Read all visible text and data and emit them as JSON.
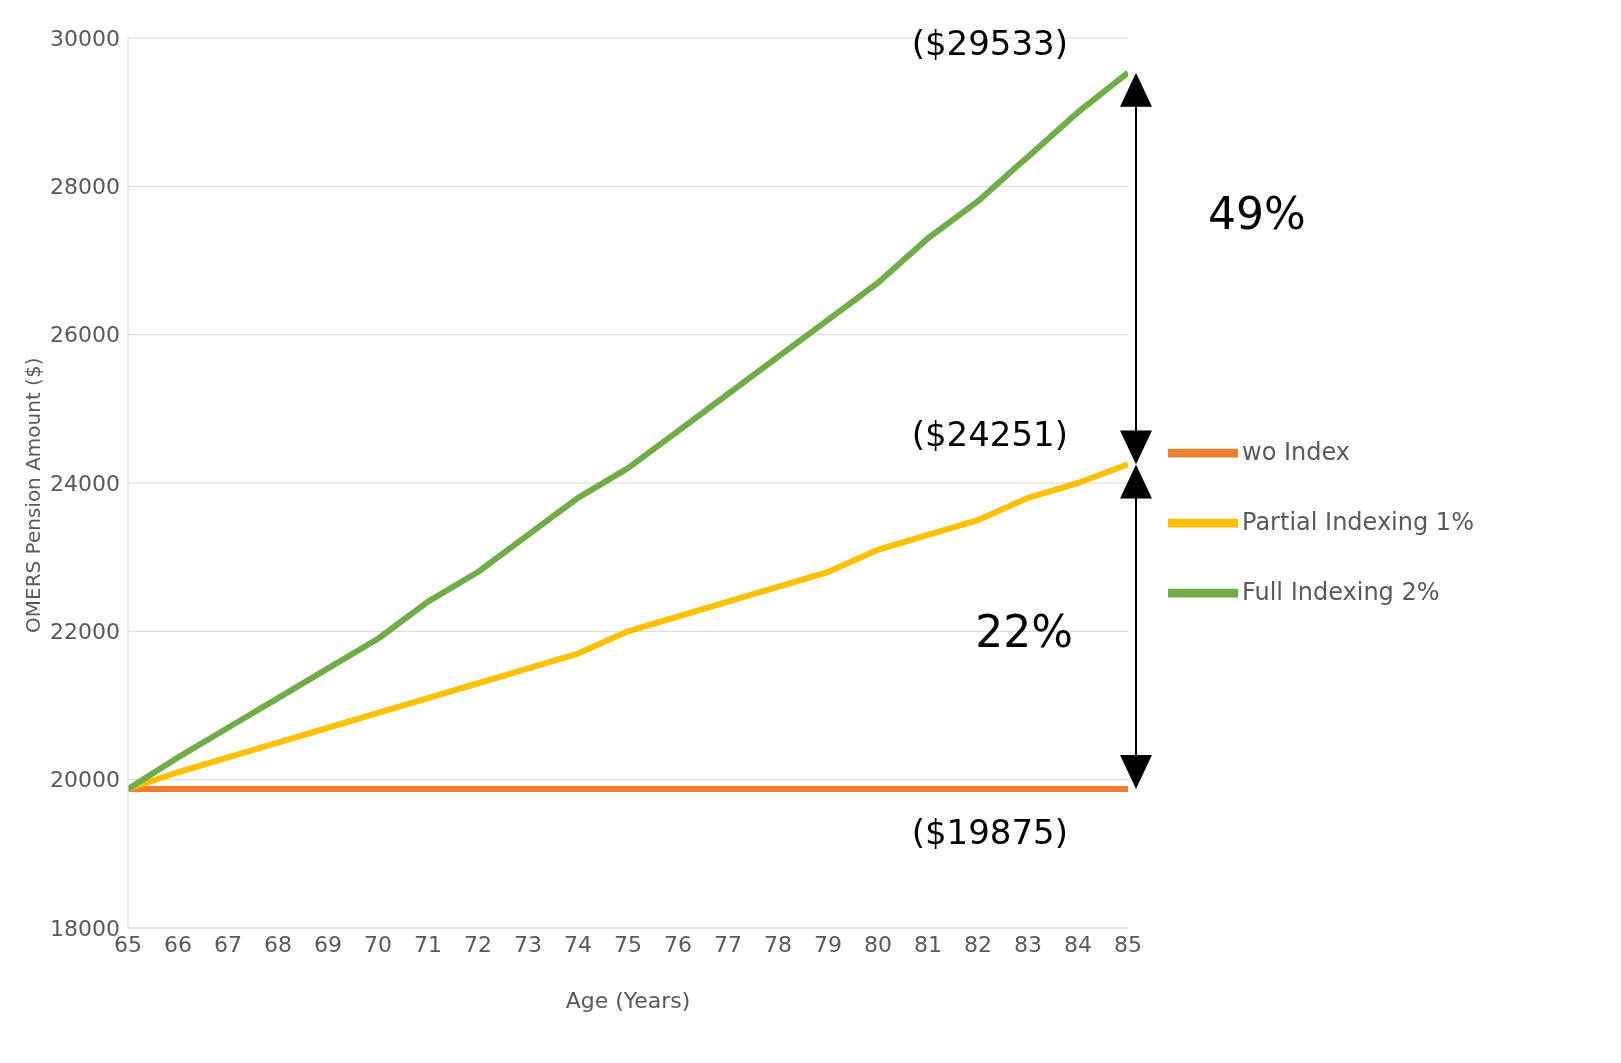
{
  "chart_data": {
    "type": "line",
    "xlabel": "Age (Years)",
    "ylabel": "OMERS Pension Amount ($)",
    "x": [
      65,
      66,
      67,
      68,
      69,
      70,
      71,
      72,
      73,
      74,
      75,
      76,
      77,
      78,
      79,
      80,
      81,
      82,
      83,
      84,
      85
    ],
    "series": [
      {
        "name": "wo Index",
        "color": "#ed7d31",
        "values": [
          19875,
          19875,
          19875,
          19875,
          19875,
          19875,
          19875,
          19875,
          19875,
          19875,
          19875,
          19875,
          19875,
          19875,
          19875,
          19875,
          19875,
          19875,
          19875,
          19875,
          19875
        ]
      },
      {
        "name": "Partial Indexing 1%",
        "color": "#ffc000",
        "values": [
          19875,
          20100,
          20300,
          20500,
          20700,
          20900,
          21100,
          21300,
          21500,
          21700,
          22000,
          22200,
          22400,
          22600,
          22800,
          23100,
          23300,
          23500,
          23800,
          24000,
          24251
        ]
      },
      {
        "name": "Full Indexing 2%",
        "color": "#70ad47",
        "values": [
          19875,
          20300,
          20700,
          21100,
          21500,
          21900,
          22400,
          22800,
          23300,
          23800,
          24200,
          24700,
          25200,
          25700,
          26200,
          26700,
          27300,
          27800,
          28400,
          29000,
          29533
        ]
      }
    ],
    "xlim": [
      65,
      85
    ],
    "xticks": [
      65,
      66,
      67,
      68,
      69,
      70,
      71,
      72,
      73,
      74,
      75,
      76,
      77,
      78,
      79,
      80,
      81,
      82,
      83,
      84,
      85
    ],
    "ylim": [
      18000,
      30000
    ],
    "yticks": [
      18000,
      20000,
      22000,
      24000,
      26000,
      28000,
      30000
    ],
    "grid": "y",
    "legend": "right",
    "marker": "none",
    "line_style": "solid",
    "annotations": [
      "($29533)",
      "($24251)",
      "($19875)",
      "49%",
      "22%"
    ]
  }
}
